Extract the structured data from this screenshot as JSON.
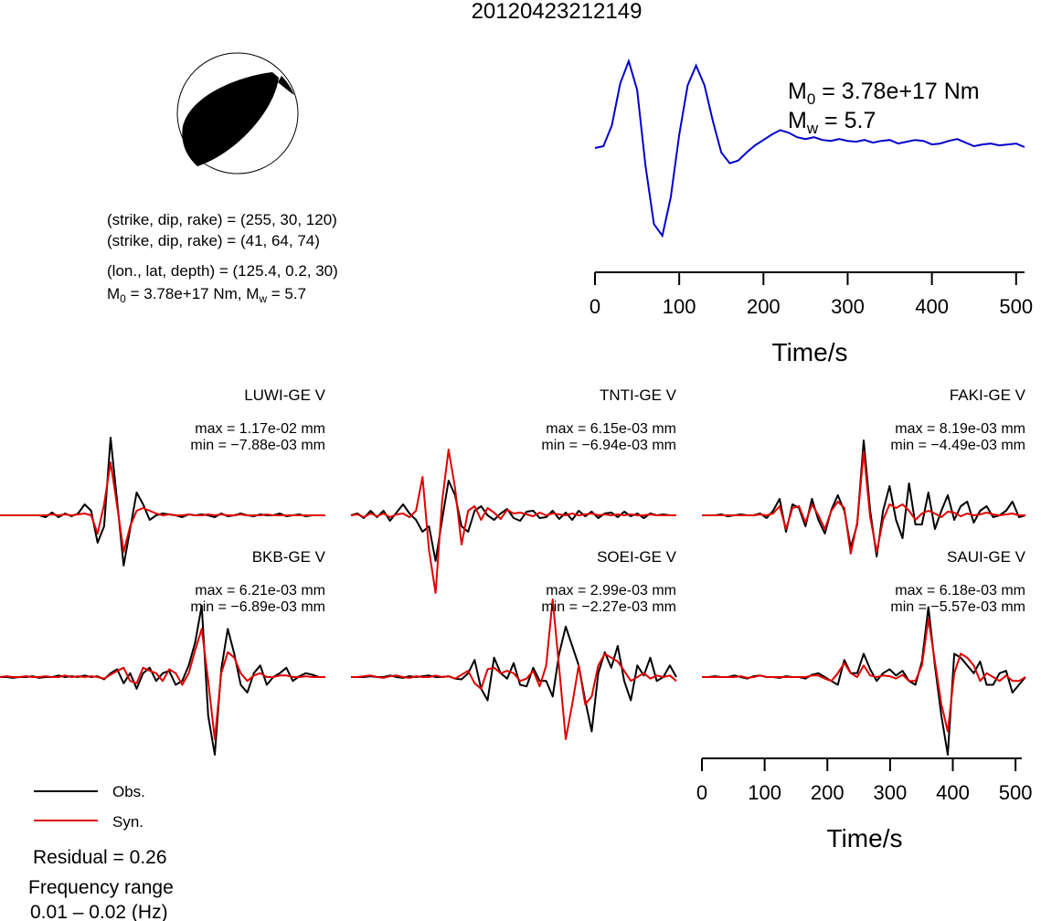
{
  "title": "20120423212149",
  "mechanism": {
    "plane1": "(strike, dip, rake) = (255, 30, 120)",
    "plane2": "(strike, dip, rake) = (41, 64, 74)",
    "location": "(lon., lat, depth) = (125.4, 0.2, 30)",
    "moment_prefix": "M",
    "moment_sub": "0",
    "moment_value": " = 3.78e+17 Nm, M",
    "mw_sub": "w",
    "mw_value": " = 5.7"
  },
  "stf_labels": {
    "m0_main": "M",
    "m0_sub": "0",
    "m0_value": " = 3.78e+17 Nm",
    "mw_main": "M",
    "mw_sub": "w",
    "mw_value": " = 5.7"
  },
  "legend": {
    "obs": "Obs.",
    "syn": "Syn.",
    "obs_color": "#000000",
    "syn_color": "#e00000"
  },
  "residual": "Residual = 0.26",
  "frequency_label": "Frequency range",
  "frequency_value": "0.01 – 0.02 (Hz)",
  "chart_data": [
    {
      "type": "line",
      "name": "source-time-function",
      "xlabel": "Time/s",
      "xlim": [
        0,
        510
      ],
      "xticks": [
        0,
        100,
        200,
        300,
        400,
        500
      ],
      "color": "#0000cc",
      "x": [
        0,
        10,
        20,
        30,
        40,
        50,
        60,
        70,
        80,
        90,
        100,
        110,
        120,
        130,
        140,
        150,
        160,
        170,
        180,
        190,
        200,
        210,
        220,
        230,
        240,
        250,
        260,
        270,
        280,
        290,
        300,
        310,
        320,
        330,
        340,
        350,
        360,
        370,
        380,
        390,
        400,
        410,
        420,
        430,
        440,
        450,
        460,
        470,
        480,
        490,
        500,
        510
      ],
      "y": [
        0,
        0.02,
        0.25,
        0.72,
        0.97,
        0.65,
        -0.2,
        -0.85,
        -0.98,
        -0.55,
        0.15,
        0.7,
        0.92,
        0.7,
        0.3,
        -0.05,
        -0.17,
        -0.14,
        -0.05,
        0.03,
        0.09,
        0.15,
        0.2,
        0.17,
        0.12,
        0.1,
        0.12,
        0.09,
        0.08,
        0.1,
        0.08,
        0.07,
        0.09,
        0.06,
        0.08,
        0.09,
        0.05,
        0.07,
        0.09,
        0.08,
        0.04,
        0.05,
        0.08,
        0.1,
        0.06,
        0.02,
        0.04,
        0.05,
        0.03,
        0.04,
        0.05,
        0.01
      ]
    },
    {
      "type": "line",
      "name": "waveforms",
      "xlabel": "Time/s",
      "xlim": [
        0,
        510
      ],
      "xticks": [
        0,
        100,
        200,
        300,
        400,
        500
      ],
      "series_names": [
        "Obs.",
        "Syn."
      ],
      "stations": [
        {
          "label": "LUWI-GE V",
          "max": "max = 1.17e-02 mm",
          "min": "min = −7.88e-03 mm",
          "obs": [
            0,
            0,
            0,
            0,
            0,
            0,
            0,
            -0.02,
            0.03,
            -0.02,
            0.02,
            -0.01,
            0.02,
            0.12,
            0.05,
            -0.3,
            -0.12,
            0.85,
            0.15,
            -0.55,
            -0.15,
            0.25,
            0.12,
            -0.05,
            0,
            0.02,
            0.01,
            0,
            -0.02,
            0.01,
            0,
            0.01,
            0,
            -0.02,
            0.02,
            -0.01,
            0,
            0.02,
            0,
            -0.01,
            0.01,
            0,
            0,
            0.02,
            -0.01,
            0,
            0.01,
            -0.01,
            0,
            0,
            0
          ],
          "syn": [
            0,
            0,
            0,
            0,
            0,
            0,
            0,
            0,
            0.01,
            0,
            0.01,
            0,
            0.01,
            0.02,
            0,
            -0.2,
            0.12,
            0.58,
            0.1,
            -0.4,
            -0.12,
            0.05,
            0.08,
            0.05,
            0.02,
            0,
            0.01,
            0,
            0,
            0.01,
            0,
            0,
            0.01,
            0,
            0.01,
            0,
            0,
            0.01,
            0,
            0,
            0,
            0.01,
            0,
            0,
            0,
            0,
            0,
            0,
            0,
            0,
            0
          ]
        },
        {
          "label": "TNTI-GE V",
          "max": "max = 6.15e-03 mm",
          "min": "min = −6.94e-03 mm",
          "obs": [
            0,
            0.02,
            -0.03,
            0.05,
            -0.02,
            0.05,
            -0.06,
            0.03,
            0.12,
            0.02,
            -0.05,
            -0.18,
            -0.12,
            -0.5,
            -0.05,
            0.38,
            0.22,
            -0.12,
            -0.18,
            0.05,
            0.1,
            0,
            -0.05,
            0.02,
            0.07,
            -0.03,
            -0.06,
            0.04,
            0.05,
            -0.03,
            -0.02,
            0.05,
            -0.04,
            0.03,
            -0.05,
            0.05,
            -0.01,
            0.04,
            -0.03,
            0.02,
            0.03,
            -0.02,
            0.04,
            -0.01,
            0.02,
            -0.03,
            0.02,
            0,
            0.01,
            0,
            0
          ],
          "syn": [
            0,
            0.01,
            -0.02,
            0.02,
            -0.01,
            0.02,
            -0.02,
            0.01,
            0.02,
            -0.02,
            0.05,
            0.42,
            -0.38,
            -0.85,
            0.15,
            0.72,
            0.3,
            -0.32,
            0.05,
            0.1,
            -0.05,
            0.08,
            0.03,
            -0.04,
            0.06,
            0.02,
            0.03,
            0.01,
            -0.01,
            0.03,
            0,
            0.02,
            0.01,
            0,
            0.02,
            0,
            0.01,
            0.02,
            0,
            0.01,
            0,
            0.01,
            0,
            0.01,
            0,
            0,
            0.01,
            0,
            0,
            0,
            0
          ]
        },
        {
          "label": "FAKI-GE V",
          "max": "max = 8.19e-03 mm",
          "min": "min = −4.49e-03 mm",
          "obs": [
            0,
            0,
            0,
            0.01,
            -0.01,
            0,
            0.01,
            0,
            0,
            0.02,
            -0.03,
            0.05,
            0.18,
            -0.18,
            0.12,
            0.08,
            -0.12,
            0.18,
            -0.05,
            -0.2,
            0.06,
            0.22,
            0.05,
            -0.35,
            -0.1,
            0.82,
            0.05,
            -0.45,
            0.05,
            0.32,
            -0.05,
            -0.25,
            0.35,
            -0.1,
            -0.1,
            0.25,
            -0.15,
            0.05,
            0.22,
            -0.05,
            0.1,
            0.15,
            -0.08,
            0.05,
            0.1,
            -0.02,
            0,
            0.05,
            0.15,
            -0.02,
            0
          ],
          "syn": [
            0,
            0,
            0,
            0,
            0,
            0,
            0,
            0,
            0,
            0.01,
            0,
            0.02,
            0.1,
            -0.15,
            0.08,
            0.1,
            -0.08,
            0.12,
            0,
            -0.15,
            0.05,
            0.15,
            0.08,
            -0.42,
            -0.08,
            0.7,
            -0.02,
            -0.4,
            -0.05,
            0.12,
            0.08,
            0.12,
            0.05,
            -0.05,
            0.02,
            0.05,
            0.02,
            -0.02,
            0.04,
            0.03,
            -0.01,
            0.02,
            0,
            0.01,
            0.03,
            0.01,
            0,
            0.01,
            0.02,
            0,
            0
          ]
        },
        {
          "label": "BKB-GE V",
          "max": "max = 6.21e-03 mm",
          "min": "min = −6.89e-03 mm",
          "obs": [
            0,
            0,
            -0.01,
            0,
            0,
            0.01,
            -0.01,
            0,
            0,
            0.02,
            0,
            0.01,
            0,
            0.02,
            0,
            0.01,
            -0.03,
            0.05,
            0.1,
            -0.08,
            0.05,
            -0.15,
            0.05,
            0.12,
            -0.05,
            0.05,
            0.08,
            -0.1,
            -0.05,
            0.15,
            0.45,
            0.92,
            -0.5,
            -1.0,
            0.1,
            0.62,
            0.3,
            -0.1,
            -0.2,
            0.05,
            0.15,
            -0.1,
            0,
            0.05,
            0.12,
            -0.05,
            0.01,
            0.05,
            0.03,
            0,
            0
          ],
          "syn": [
            0,
            0.01,
            0,
            0,
            0.01,
            0,
            0,
            0.01,
            0,
            0,
            0.02,
            0,
            0.01,
            0,
            0.01,
            0,
            -0.02,
            0.03,
            0.08,
            0.12,
            -0.05,
            -0.08,
            0.12,
            0.08,
            0.05,
            -0.05,
            0.1,
            0.05,
            -0.1,
            0.05,
            0.35,
            0.62,
            -0.05,
            -0.8,
            0.05,
            0.32,
            0.25,
            0.05,
            -0.05,
            0.02,
            0.05,
            0,
            0,
            0.02,
            0.02,
            0,
            0,
            0.01,
            0,
            0,
            0
          ]
        },
        {
          "label": "SOEI-GE V",
          "max": "max = 2.99e-03 mm",
          "min": "min = −2.27e-03 mm",
          "obs": [
            0,
            0,
            0,
            0.01,
            0,
            0,
            0.02,
            0,
            -0.01,
            0.01,
            0,
            0.01,
            0.02,
            0,
            0,
            0.01,
            -0.02,
            -0.03,
            0.05,
            0.22,
            -0.15,
            -0.3,
            0.25,
            0.05,
            -0.02,
            0.18,
            -0.1,
            -0.12,
            0.12,
            -0.05,
            -0.05,
            -0.25,
            0.3,
            0.65,
            0.4,
            0.15,
            -0.3,
            -0.7,
            0.05,
            0.32,
            0.12,
            0.4,
            -0.05,
            -0.3,
            0.15,
            0.02,
            0.25,
            -0.05,
            0,
            0.15,
            0
          ],
          "syn": [
            0,
            0,
            0.01,
            0.02,
            0,
            -0.01,
            0.01,
            0.02,
            0,
            -0.01,
            0.01,
            0,
            0,
            0.02,
            0,
            0.01,
            -0.02,
            0.03,
            0.08,
            -0.08,
            -0.15,
            0.1,
            0.12,
            0.05,
            0.08,
            0.05,
            -0.05,
            -0.02,
            0.08,
            -0.12,
            0.15,
            1.0,
            0.12,
            -0.8,
            -0.35,
            0.15,
            -0.35,
            -0.25,
            0.15,
            0.3,
            0.25,
            0.2,
            0.08,
            -0.05,
            0,
            0.05,
            -0.02,
            0.02,
            0,
            0.02,
            -0.05
          ]
        },
        {
          "label": "SAUI-GE V",
          "max": "max = 6.18e-03 mm",
          "min": "min = −5.57e-03 mm",
          "obs": [
            0,
            0,
            0.01,
            0,
            0,
            0.02,
            0,
            -0.02,
            0.01,
            0.02,
            0,
            0,
            -0.01,
            0.01,
            0,
            0,
            -0.02,
            0.03,
            0.05,
            0,
            -0.05,
            -0.1,
            0.22,
            0.05,
            0.05,
            0.3,
            0.1,
            -0.05,
            0.05,
            0.1,
            0.02,
            0.08,
            -0.05,
            -0.1,
            0.2,
            0.9,
            0.15,
            -0.5,
            -1.0,
            0.3,
            0.25,
            0.15,
            0.05,
            0.2,
            -0.1,
            -0.1,
            0.05,
            0.08,
            -0.2,
            -0.1,
            0
          ],
          "syn": [
            0,
            0,
            0,
            0,
            0,
            0,
            0.01,
            -0.01,
            0,
            0.02,
            0,
            0,
            0,
            0,
            0,
            0,
            0,
            0.02,
            0.02,
            -0.02,
            -0.05,
            0.05,
            0.18,
            0.05,
            0,
            0.15,
            0.02,
            0,
            0.02,
            0.01,
            -0.02,
            0.03,
            -0.05,
            -0.05,
            0.15,
            0.75,
            0.2,
            -0.35,
            -0.7,
            0.05,
            0.3,
            0.25,
            0.15,
            -0.05,
            0.05,
            0,
            -0.05,
            0.02,
            -0.05,
            -0.05,
            0
          ]
        }
      ]
    }
  ]
}
